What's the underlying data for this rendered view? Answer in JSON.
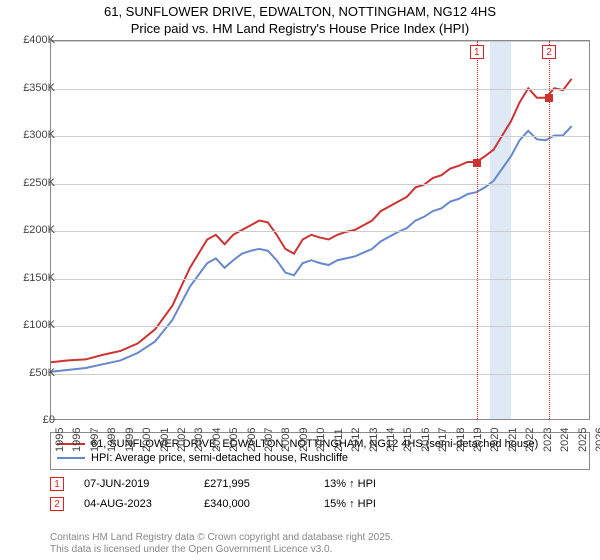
{
  "title_line1": "61, SUNFLOWER DRIVE, EDWALTON, NOTTINGHAM, NG12 4HS",
  "title_line2": "Price paid vs. HM Land Registry's House Price Index (HPI)",
  "chart": {
    "type": "line",
    "background_color": "#ffffff",
    "grid_color": "#cccccc",
    "border_color": "#888888",
    "x_axis": {
      "min": 1995,
      "max": 2026,
      "ticks": [
        1995,
        1996,
        1997,
        1998,
        1999,
        2000,
        2001,
        2002,
        2003,
        2004,
        2005,
        2006,
        2007,
        2008,
        2009,
        2010,
        2011,
        2012,
        2013,
        2014,
        2015,
        2016,
        2017,
        2018,
        2019,
        2020,
        2021,
        2022,
        2023,
        2024,
        2025,
        2026
      ],
      "label_fontsize": 11
    },
    "y_axis": {
      "min": 0,
      "max": 400000,
      "ticks": [
        0,
        50000,
        100000,
        150000,
        200000,
        250000,
        300000,
        350000,
        400000
      ],
      "tick_labels": [
        "£0",
        "£50K",
        "£100K",
        "£150K",
        "£200K",
        "£250K",
        "£300K",
        "£350K",
        "£400K"
      ],
      "label_fontsize": 11
    },
    "marker_band": {
      "start": 2020.2,
      "end": 2021.4,
      "color": "#dfe8f5"
    },
    "markers": [
      {
        "id": "1",
        "x": 2019.44,
        "y": 271995,
        "line_color": "#dd2222",
        "style": "dotted"
      },
      {
        "id": "2",
        "x": 2023.59,
        "y": 340000,
        "line_color": "#dd2222",
        "style": "dotted"
      }
    ],
    "series": [
      {
        "name": "61, SUNFLOWER DRIVE, EDWALTON, NOTTINGHAM, NG12 4HS (semi-detached house)",
        "color": "#cc3333",
        "line_width": 2,
        "points": [
          [
            1995,
            60000
          ],
          [
            1996,
            62000
          ],
          [
            1997,
            63000
          ],
          [
            1998,
            68000
          ],
          [
            1999,
            72000
          ],
          [
            2000,
            80000
          ],
          [
            2001,
            95000
          ],
          [
            2002,
            120000
          ],
          [
            2003,
            160000
          ],
          [
            2004,
            190000
          ],
          [
            2004.5,
            195000
          ],
          [
            2005,
            185000
          ],
          [
            2005.5,
            195000
          ],
          [
            2006,
            200000
          ],
          [
            2006.5,
            205000
          ],
          [
            2007,
            210000
          ],
          [
            2007.5,
            208000
          ],
          [
            2008,
            195000
          ],
          [
            2008.5,
            180000
          ],
          [
            2009,
            175000
          ],
          [
            2009.5,
            190000
          ],
          [
            2010,
            195000
          ],
          [
            2010.5,
            192000
          ],
          [
            2011,
            190000
          ],
          [
            2011.5,
            195000
          ],
          [
            2012,
            198000
          ],
          [
            2012.5,
            200000
          ],
          [
            2013,
            205000
          ],
          [
            2013.5,
            210000
          ],
          [
            2014,
            220000
          ],
          [
            2014.5,
            225000
          ],
          [
            2015,
            230000
          ],
          [
            2015.5,
            235000
          ],
          [
            2016,
            245000
          ],
          [
            2016.5,
            248000
          ],
          [
            2017,
            255000
          ],
          [
            2017.5,
            258000
          ],
          [
            2018,
            265000
          ],
          [
            2018.5,
            268000
          ],
          [
            2019,
            272000
          ],
          [
            2019.5,
            272000
          ],
          [
            2020,
            278000
          ],
          [
            2020.5,
            285000
          ],
          [
            2021,
            300000
          ],
          [
            2021.5,
            315000
          ],
          [
            2022,
            335000
          ],
          [
            2022.5,
            350000
          ],
          [
            2023,
            340000
          ],
          [
            2023.5,
            340000
          ],
          [
            2024,
            350000
          ],
          [
            2024.5,
            348000
          ],
          [
            2025,
            360000
          ]
        ]
      },
      {
        "name": "HPI: Average price, semi-detached house, Rushcliffe",
        "color": "#6688cc",
        "line_width": 2,
        "points": [
          [
            1995,
            50000
          ],
          [
            1996,
            52000
          ],
          [
            1997,
            54000
          ],
          [
            1998,
            58000
          ],
          [
            1999,
            62000
          ],
          [
            2000,
            70000
          ],
          [
            2001,
            82000
          ],
          [
            2002,
            105000
          ],
          [
            2003,
            140000
          ],
          [
            2004,
            165000
          ],
          [
            2004.5,
            170000
          ],
          [
            2005,
            160000
          ],
          [
            2005.5,
            168000
          ],
          [
            2006,
            175000
          ],
          [
            2006.5,
            178000
          ],
          [
            2007,
            180000
          ],
          [
            2007.5,
            178000
          ],
          [
            2008,
            168000
          ],
          [
            2008.5,
            155000
          ],
          [
            2009,
            152000
          ],
          [
            2009.5,
            165000
          ],
          [
            2010,
            168000
          ],
          [
            2010.5,
            165000
          ],
          [
            2011,
            163000
          ],
          [
            2011.5,
            168000
          ],
          [
            2012,
            170000
          ],
          [
            2012.5,
            172000
          ],
          [
            2013,
            176000
          ],
          [
            2013.5,
            180000
          ],
          [
            2014,
            188000
          ],
          [
            2014.5,
            193000
          ],
          [
            2015,
            198000
          ],
          [
            2015.5,
            202000
          ],
          [
            2016,
            210000
          ],
          [
            2016.5,
            214000
          ],
          [
            2017,
            220000
          ],
          [
            2017.5,
            223000
          ],
          [
            2018,
            230000
          ],
          [
            2018.5,
            233000
          ],
          [
            2019,
            238000
          ],
          [
            2019.5,
            240000
          ],
          [
            2020,
            245000
          ],
          [
            2020.5,
            252000
          ],
          [
            2021,
            265000
          ],
          [
            2021.5,
            278000
          ],
          [
            2022,
            295000
          ],
          [
            2022.5,
            305000
          ],
          [
            2023,
            296000
          ],
          [
            2023.5,
            295000
          ],
          [
            2024,
            300000
          ],
          [
            2024.5,
            300000
          ],
          [
            2025,
            310000
          ]
        ]
      }
    ]
  },
  "legend": {
    "items": [
      {
        "color": "#cc3333",
        "label": "61, SUNFLOWER DRIVE, EDWALTON, NOTTINGHAM, NG12 4HS (semi-detached house)"
      },
      {
        "color": "#6688cc",
        "label": "HPI: Average price, semi-detached house, Rushcliffe"
      }
    ]
  },
  "sales": [
    {
      "id": "1",
      "date": "07-JUN-2019",
      "price": "£271,995",
      "pct": "13% ↑ HPI"
    },
    {
      "id": "2",
      "date": "04-AUG-2023",
      "price": "£340,000",
      "pct": "15% ↑ HPI"
    }
  ],
  "attribution_line1": "Contains HM Land Registry data © Crown copyright and database right 2025.",
  "attribution_line2": "This data is licensed under the Open Government Licence v3.0."
}
